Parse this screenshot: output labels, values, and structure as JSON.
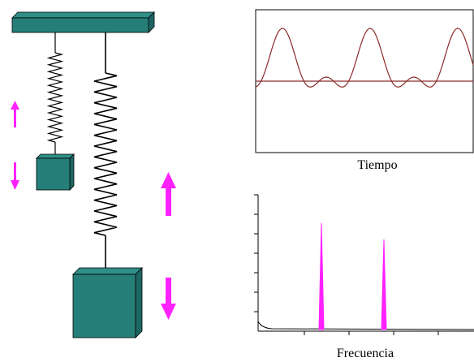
{
  "time_plot": {
    "label": "Tiempo"
  },
  "spectrum_plot": {
    "label": "Frecuencia"
  }
}
